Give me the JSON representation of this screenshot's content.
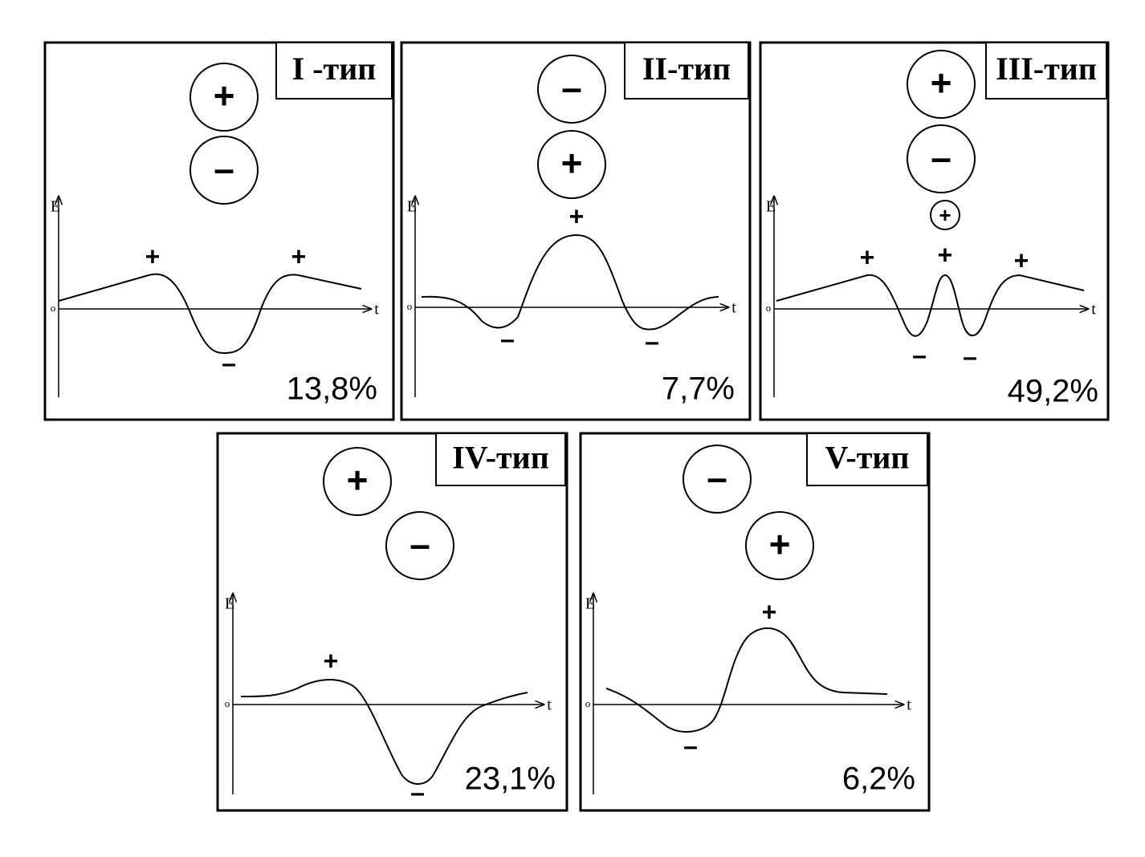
{
  "panels": [
    {
      "title": "I -тип",
      "circles": [
        "+",
        "–"
      ],
      "axis": {
        "y": "E",
        "origin": "o",
        "x": "t"
      },
      "signs": [
        "+",
        "+",
        "–"
      ],
      "share": "13,8%"
    },
    {
      "title": "II-тип",
      "circles": [
        "–",
        "+"
      ],
      "axis": {
        "y": "E",
        "origin": "o",
        "x": "t"
      },
      "signs": [
        "+",
        "–",
        "–"
      ],
      "share": "7,7%"
    },
    {
      "title": "III-тип",
      "circles": [
        "+",
        "–",
        "+"
      ],
      "axis": {
        "y": "E",
        "origin": "o",
        "x": "t"
      },
      "signs": [
        "+",
        "+",
        "+",
        "–",
        "–"
      ],
      "share": "49,2%"
    },
    {
      "title": "IV-тип",
      "circles": [
        "+",
        "–"
      ],
      "axis": {
        "y": "E",
        "origin": "o",
        "x": "t"
      },
      "signs": [
        "+",
        "–"
      ],
      "share": "23,1%"
    },
    {
      "title": "V-тип",
      "circles": [
        "–",
        "+"
      ],
      "axis": {
        "y": "E",
        "origin": "o",
        "x": "t"
      },
      "signs": [
        "+",
        "–"
      ],
      "share": "6,2%"
    }
  ]
}
